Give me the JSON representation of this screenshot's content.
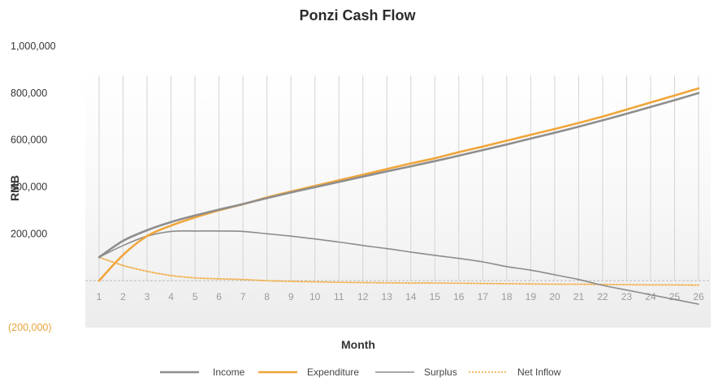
{
  "chart_data": {
    "type": "line",
    "title": "Ponzi Cash Flow",
    "xlabel": "Month",
    "ylabel": "RMB",
    "x": [
      1,
      2,
      3,
      4,
      5,
      6,
      7,
      8,
      9,
      10,
      11,
      12,
      13,
      14,
      15,
      16,
      17,
      18,
      19,
      20,
      21,
      22,
      23,
      24,
      25,
      26
    ],
    "ylim": [
      -200000,
      1000000
    ],
    "yticks": [
      {
        "value": 1000000,
        "label": "1,000,000",
        "color": "#333333"
      },
      {
        "value": 800000,
        "label": "800,000",
        "color": "#333333"
      },
      {
        "value": 600000,
        "label": "600,000",
        "color": "#333333"
      },
      {
        "value": 400000,
        "label": "400,000",
        "color": "#333333"
      },
      {
        "value": 200000,
        "label": "200,000",
        "color": "#333333"
      },
      {
        "value": -200000,
        "label": "(200,000)",
        "color": "#e8a33a"
      }
    ],
    "grid": "vertical",
    "legend_position": "bottom",
    "series": [
      {
        "name": "Income",
        "color": "#8e8e8e",
        "width": 2.6,
        "dash": "",
        "values": [
          100000,
          170000,
          215000,
          250000,
          278000,
          303000,
          327000,
          352000,
          376000,
          399000,
          421000,
          444000,
          466000,
          488000,
          510000,
          533000,
          557000,
          581000,
          606000,
          631000,
          657000,
          684000,
          712000,
          741000,
          770000,
          800000
        ]
      },
      {
        "name": "Expenditure",
        "color": "#f0a53a",
        "width": 2.6,
        "dash": "",
        "values": [
          0,
          110000,
          190000,
          235000,
          270000,
          300000,
          326000,
          355000,
          380000,
          404000,
          428000,
          452000,
          476000,
          500000,
          522000,
          548000,
          572000,
          597000,
          622000,
          647000,
          673000,
          700000,
          730000,
          760000,
          790000,
          820000
        ]
      },
      {
        "name": "Surplus",
        "color": "#8c8c8c",
        "width": 1.6,
        "dash": "",
        "values": [
          100000,
          150000,
          190000,
          210000,
          212000,
          212000,
          210000,
          200000,
          190000,
          178000,
          165000,
          150000,
          137000,
          122000,
          108000,
          95000,
          80000,
          60000,
          45000,
          25000,
          5000,
          -20000,
          -40000,
          -60000,
          -80000,
          -100000
        ]
      },
      {
        "name": "Net Inflow",
        "color": "#f2b14f",
        "width": 1.8,
        "dash": "2,2",
        "values": [
          100000,
          65000,
          40000,
          22000,
          12000,
          8000,
          5000,
          0,
          -3000,
          -5000,
          -7000,
          -8000,
          -9000,
          -10000,
          -10000,
          -11000,
          -12000,
          -13000,
          -14000,
          -15000,
          -15000,
          -16000,
          -17000,
          -18000,
          -18000,
          -19000
        ]
      }
    ]
  }
}
